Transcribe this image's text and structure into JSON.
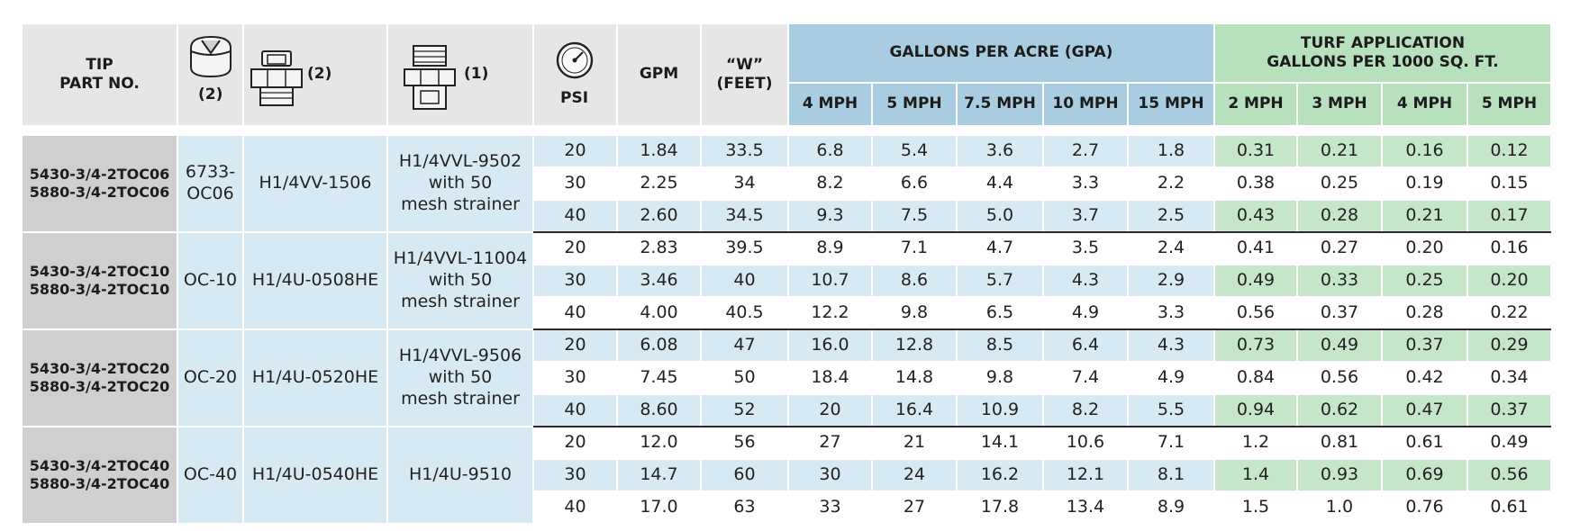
{
  "headers": {
    "tip_part_no": "TIP\nPART NO.",
    "psi": "PSI",
    "gpm": "GPM",
    "w_feet": "“W”\n(FEET)",
    "gpa_group": "GALLONS PER ACRE (GPA)",
    "turf_group": "TURF APPLICATION\nGALLONS PER 1000 SQ. FT.",
    "gpa_speeds": [
      "4 MPH",
      "5 MPH",
      "7.5 MPH",
      "10 MPH",
      "15 MPH"
    ],
    "turf_speeds": [
      "2 MPH",
      "3 MPH",
      "4 MPH",
      "5 MPH"
    ]
  },
  "component_icons": [
    {
      "icon": "spray-tip-icon",
      "qty": "(2)"
    },
    {
      "icon": "hex-body-icon",
      "qty": "(2)"
    },
    {
      "icon": "strainer-fitting-icon",
      "qty": "(1)"
    }
  ],
  "icons": {
    "psi": "pressure-gauge-icon"
  },
  "colors": {
    "header_gray": "#e6e6e6",
    "part_gray": "#cfcfcf",
    "light_blue": "#d7eaf3",
    "header_blue": "#a9cde0",
    "light_green": "#c6e6c9",
    "header_green": "#b7e0bc",
    "rule": "#2a2a2a"
  },
  "groups": [
    {
      "tip_part_no": "5430-3/4-2TOC06\n5880-3/4-2TOC06",
      "tip": "6733-\nOC06",
      "body": "H1/4VV-1506",
      "strainer": "H1/4VVL-9502\nwith 50\nmesh strainer",
      "rows": [
        {
          "psi": "20",
          "gpm": "1.84",
          "w": "33.5",
          "gpa": [
            "6.8",
            "5.4",
            "3.6",
            "2.7",
            "1.8"
          ],
          "turf": [
            "0.31",
            "0.21",
            "0.16",
            "0.12"
          ]
        },
        {
          "psi": "30",
          "gpm": "2.25",
          "w": "34",
          "gpa": [
            "8.2",
            "6.6",
            "4.4",
            "3.3",
            "2.2"
          ],
          "turf": [
            "0.38",
            "0.25",
            "0.19",
            "0.15"
          ]
        },
        {
          "psi": "40",
          "gpm": "2.60",
          "w": "34.5",
          "gpa": [
            "9.3",
            "7.5",
            "5.0",
            "3.7",
            "2.5"
          ],
          "turf": [
            "0.43",
            "0.28",
            "0.21",
            "0.17"
          ]
        }
      ]
    },
    {
      "tip_part_no": "5430-3/4-2TOC10\n5880-3/4-2TOC10",
      "tip": "OC-10",
      "body": "H1/4U-0508HE",
      "strainer": "H1/4VVL-11004\nwith 50\nmesh strainer",
      "rows": [
        {
          "psi": "20",
          "gpm": "2.83",
          "w": "39.5",
          "gpa": [
            "8.9",
            "7.1",
            "4.7",
            "3.5",
            "2.4"
          ],
          "turf": [
            "0.41",
            "0.27",
            "0.20",
            "0.16"
          ]
        },
        {
          "psi": "30",
          "gpm": "3.46",
          "w": "40",
          "gpa": [
            "10.7",
            "8.6",
            "5.7",
            "4.3",
            "2.9"
          ],
          "turf": [
            "0.49",
            "0.33",
            "0.25",
            "0.20"
          ]
        },
        {
          "psi": "40",
          "gpm": "4.00",
          "w": "40.5",
          "gpa": [
            "12.2",
            "9.8",
            "6.5",
            "4.9",
            "3.3"
          ],
          "turf": [
            "0.56",
            "0.37",
            "0.28",
            "0.22"
          ]
        }
      ]
    },
    {
      "tip_part_no": "5430-3/4-2TOC20\n5880-3/4-2TOC20",
      "tip": "OC-20",
      "body": "H1/4U-0520HE",
      "strainer": "H1/4VVL-9506\nwith 50\nmesh strainer",
      "rows": [
        {
          "psi": "20",
          "gpm": "6.08",
          "w": "47",
          "gpa": [
            "16.0",
            "12.8",
            "8.5",
            "6.4",
            "4.3"
          ],
          "turf": [
            "0.73",
            "0.49",
            "0.37",
            "0.29"
          ]
        },
        {
          "psi": "30",
          "gpm": "7.45",
          "w": "50",
          "gpa": [
            "18.4",
            "14.8",
            "9.8",
            "7.4",
            "4.9"
          ],
          "turf": [
            "0.84",
            "0.56",
            "0.42",
            "0.34"
          ]
        },
        {
          "psi": "40",
          "gpm": "8.60",
          "w": "52",
          "gpa": [
            "20",
            "16.4",
            "10.9",
            "8.2",
            "5.5"
          ],
          "turf": [
            "0.94",
            "0.62",
            "0.47",
            "0.37"
          ]
        }
      ]
    },
    {
      "tip_part_no": "5430-3/4-2TOC40\n5880-3/4-2TOC40",
      "tip": "OC-40",
      "body": "H1/4U-0540HE",
      "strainer": "H1/4U-9510",
      "rows": [
        {
          "psi": "20",
          "gpm": "12.0",
          "w": "56",
          "gpa": [
            "27",
            "21",
            "14.1",
            "10.6",
            "7.1"
          ],
          "turf": [
            "1.2",
            "0.81",
            "0.61",
            "0.49"
          ]
        },
        {
          "psi": "30",
          "gpm": "14.7",
          "w": "60",
          "gpa": [
            "30",
            "24",
            "16.2",
            "12.1",
            "8.1"
          ],
          "turf": [
            "1.4",
            "0.93",
            "0.69",
            "0.56"
          ]
        },
        {
          "psi": "40",
          "gpm": "17.0",
          "w": "63",
          "gpa": [
            "33",
            "27",
            "17.8",
            "13.4",
            "8.9"
          ],
          "turf": [
            "1.5",
            "1.0",
            "0.76",
            "0.61"
          ]
        }
      ]
    }
  ]
}
